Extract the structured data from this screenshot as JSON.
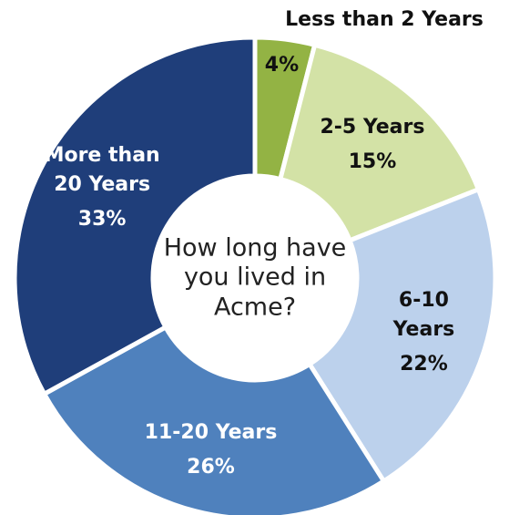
{
  "chart_data": {
    "type": "donut",
    "title": "How long have you lived in Acme?",
    "categories": [
      "Less than 2 Years",
      "2-5 Years",
      "6-10 Years",
      "11-20 Years",
      "More than 20 Years"
    ],
    "values": [
      4,
      15,
      22,
      26,
      33
    ],
    "value_labels": [
      "4%",
      "15%",
      "22%",
      "26%",
      "33%"
    ],
    "colors": [
      "#93b344",
      "#d3e2a6",
      "#bcd1ec",
      "#4f81bd",
      "#1f3e7a"
    ]
  }
}
